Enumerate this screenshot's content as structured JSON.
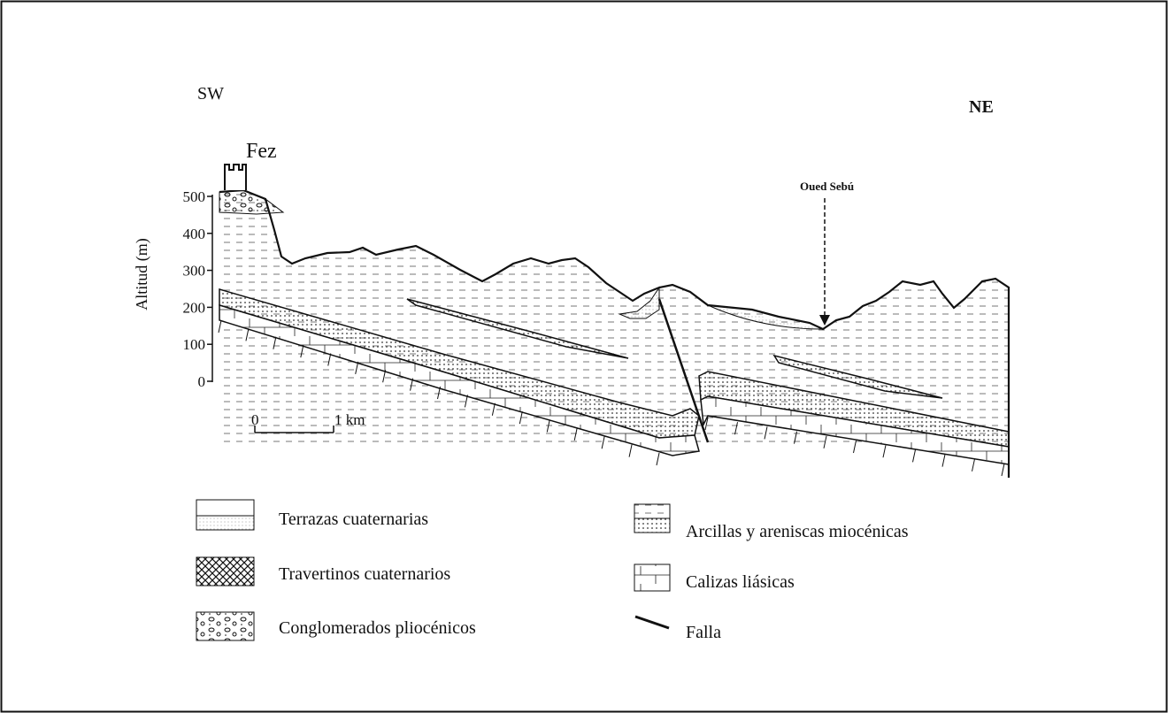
{
  "labels": {
    "sw": "SW",
    "ne": "NE",
    "town": "Fez",
    "river": "Oued Sebú"
  },
  "axis": {
    "title": "Altitud (m)",
    "ticks": [
      500,
      400,
      300,
      200,
      100,
      0
    ]
  },
  "scale": {
    "start": "0",
    "end": "1 km"
  },
  "legend": [
    {
      "label": "Terrazas cuaternarias"
    },
    {
      "label": "Travertinos cuaternarios"
    },
    {
      "label": "Conglomerados pliocénicos"
    },
    {
      "label": "Arcillas y areniscas miocénicas"
    },
    {
      "label": "Calizas liásicas"
    },
    {
      "label": "Falla"
    }
  ]
}
